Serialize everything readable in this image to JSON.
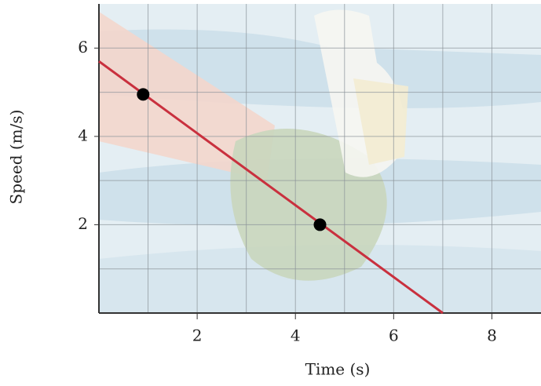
{
  "chart_data": {
    "type": "line",
    "xlabel": "Time (s)",
    "ylabel": "Speed (m/s)",
    "xlim": [
      0,
      9
    ],
    "ylim": [
      0,
      7
    ],
    "xticks": [
      2,
      4,
      6,
      8
    ],
    "yticks": [
      2,
      4,
      6
    ],
    "xgrid": [
      1,
      2,
      3,
      4,
      5,
      6,
      7,
      8
    ],
    "ygrid": [
      1,
      2,
      3,
      4,
      5,
      6
    ],
    "series": [
      {
        "kind": "line",
        "color": "#c9303e",
        "x": [
          0,
          7
        ],
        "values": [
          5.7,
          0
        ]
      },
      {
        "kind": "points",
        "color": "#000000",
        "x": [
          0.9,
          4.5
        ],
        "values": [
          4.95,
          2
        ]
      }
    ]
  }
}
